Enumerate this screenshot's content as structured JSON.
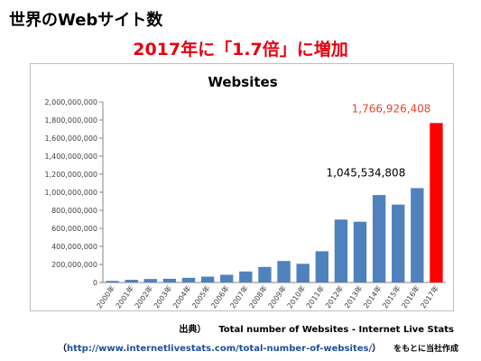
{
  "slide": {
    "title": "世界のWebサイト数",
    "headline": "2017年に「1.7倍」に増加",
    "source_label": "出典）",
    "source_text": "Total number of Websites - Internet Live Stats",
    "url_open": "（",
    "url": "http://www.internetlivestats.com/total-number-of-websites/",
    "url_close": "）",
    "note": "をもとに当社作成"
  },
  "colors": {
    "bar": "#4f81bd",
    "highlight_bar": "#ff0000",
    "title_red": "#e60012",
    "highlight_label": "#e8432e"
  },
  "chart_data": {
    "type": "bar",
    "title": "Websites",
    "categories": [
      "2000年",
      "2001年",
      "2002年",
      "2003年",
      "2004年",
      "2005年",
      "2006年",
      "2007年",
      "2008年",
      "2009年",
      "2010年",
      "2011年",
      "2012年",
      "2013年",
      "2014年",
      "2015年",
      "2016年",
      "2017年"
    ],
    "values": [
      17087182,
      29254370,
      38760373,
      40912332,
      51611646,
      64780617,
      85507314,
      121892559,
      172338726,
      238027855,
      206956723,
      346004403,
      697089489,
      672985183,
      968882453,
      863105652,
      1045534808,
      1766926408
    ],
    "highlight_index": 17,
    "ylim": [
      0,
      2000000000
    ],
    "yticks": [
      "0",
      "200,000,000",
      "400,000,000",
      "600,000,000",
      "800,000,000",
      "1,000,000,000",
      "1,200,000,000",
      "1,400,000,000",
      "1,600,000,000",
      "1,800,000,000",
      "2,000,000,000"
    ],
    "annotations": [
      {
        "index": 16,
        "text": "1,045,534,808"
      },
      {
        "index": 17,
        "text": "1,766,926,408"
      }
    ],
    "grid": false,
    "legend": "none"
  }
}
